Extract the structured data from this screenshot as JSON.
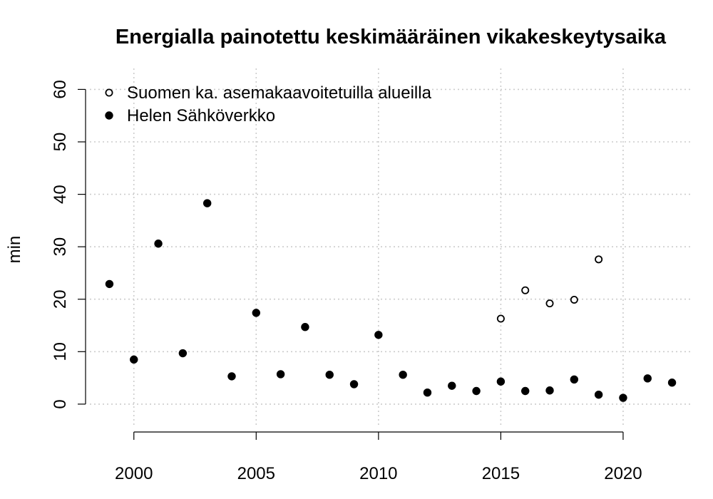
{
  "chart_data": {
    "type": "scatter",
    "title": "Energialla painotettu keskimääräinen vikakeskeytysaika",
    "xlabel": "",
    "ylabel": "min",
    "xlim": [
      1998.2,
      2022.8
    ],
    "ylim": [
      -4.5,
      64
    ],
    "x_ticks": [
      2000,
      2005,
      2010,
      2015,
      2020
    ],
    "y_ticks": [
      0,
      10,
      20,
      30,
      40,
      50,
      60
    ],
    "grid": true,
    "legend_position": "top-left",
    "series": [
      {
        "name": "Suomen ka. asemakaavoitetuilla alueilla",
        "marker": "open-circle",
        "color": "#000000",
        "points": [
          {
            "x": 2015,
            "y": 16.3
          },
          {
            "x": 2016,
            "y": 21.7
          },
          {
            "x": 2017,
            "y": 19.2
          },
          {
            "x": 2018,
            "y": 19.9
          },
          {
            "x": 2019,
            "y": 27.6
          }
        ]
      },
      {
        "name": "Helen Sähköverkko",
        "marker": "filled-circle",
        "color": "#000000",
        "points": [
          {
            "x": 1999,
            "y": 22.9
          },
          {
            "x": 2000,
            "y": 8.5
          },
          {
            "x": 2001,
            "y": 30.6
          },
          {
            "x": 2002,
            "y": 9.7
          },
          {
            "x": 2003,
            "y": 38.3
          },
          {
            "x": 2004,
            "y": 5.3
          },
          {
            "x": 2005,
            "y": 17.4
          },
          {
            "x": 2006,
            "y": 5.7
          },
          {
            "x": 2007,
            "y": 14.7
          },
          {
            "x": 2008,
            "y": 5.6
          },
          {
            "x": 2009,
            "y": 3.8
          },
          {
            "x": 2010,
            "y": 13.2
          },
          {
            "x": 2011,
            "y": 5.6
          },
          {
            "x": 2012,
            "y": 2.2
          },
          {
            "x": 2013,
            "y": 3.5
          },
          {
            "x": 2014,
            "y": 2.5
          },
          {
            "x": 2015,
            "y": 4.3
          },
          {
            "x": 2016,
            "y": 2.5
          },
          {
            "x": 2017,
            "y": 2.6
          },
          {
            "x": 2018,
            "y": 4.7
          },
          {
            "x": 2019,
            "y": 1.8
          },
          {
            "x": 2020,
            "y": 1.2
          },
          {
            "x": 2021,
            "y": 4.9
          },
          {
            "x": 2022,
            "y": 4.1
          }
        ]
      }
    ]
  }
}
